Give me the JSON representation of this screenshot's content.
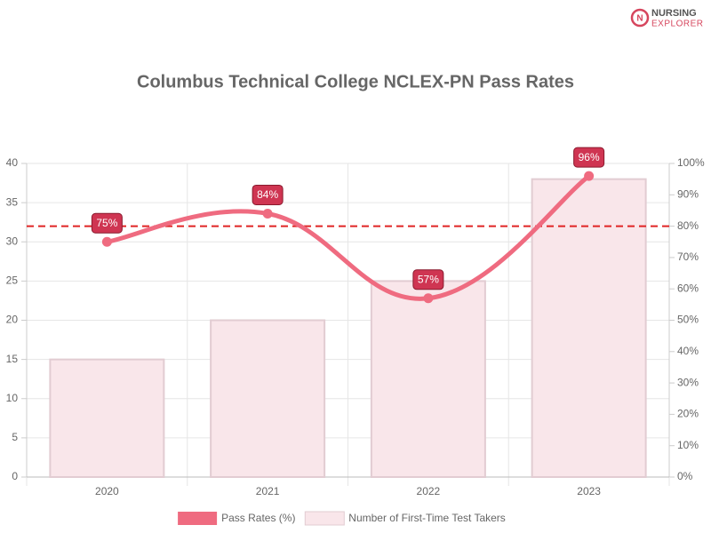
{
  "logo": {
    "line1": "NURSING",
    "line2": "EXPLORER"
  },
  "chart_data": {
    "type": "combo",
    "title": "Columbus Technical College NCLEX-PN Pass Rates",
    "categories": [
      "2020",
      "2021",
      "2022",
      "2023"
    ],
    "series": [
      {
        "name": "Pass Rates (%)",
        "type": "line",
        "axis": "y2",
        "color": "#ef6b80",
        "values": [
          75,
          84,
          57,
          96
        ],
        "value_labels": [
          "75%",
          "84%",
          "57%",
          "96%"
        ]
      },
      {
        "name": "Number of First-Time Test Takers",
        "type": "bar",
        "color": "#f9e6ea",
        "values": [
          15,
          20,
          25,
          38
        ]
      }
    ],
    "ylim": [
      0,
      40
    ],
    "yticks": [
      0,
      5,
      10,
      15,
      20,
      25,
      30,
      35,
      40
    ],
    "y2lim": [
      0,
      100
    ],
    "y2ticks": [
      {
        "value": 0,
        "label": "0%"
      },
      {
        "value": 10,
        "label": "10%"
      },
      {
        "value": 20,
        "label": "20%"
      },
      {
        "value": 30,
        "label": "30%"
      },
      {
        "value": 40,
        "label": "40%"
      },
      {
        "value": 50,
        "label": "50%"
      },
      {
        "value": 60,
        "label": "60%"
      },
      {
        "value": 70,
        "label": "70%"
      },
      {
        "value": 80,
        "label": "80%"
      },
      {
        "value": 90,
        "label": "90%"
      },
      {
        "value": 100,
        "label": "100%"
      }
    ],
    "reference_line": {
      "value": 80,
      "axis": "y2",
      "color": "#e02424"
    },
    "grid": true,
    "legend": "bottom"
  }
}
